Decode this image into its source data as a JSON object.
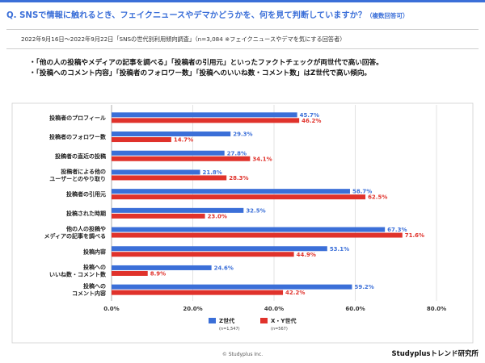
{
  "header": {
    "title": "Q. SNSで情報に触れるとき、フェイクニュースやデマかどうかを、何を見て判断していますか？",
    "title_note": "（複数回答可）",
    "subtitle": "2022年9月16日～2022年9月22日「SNSの世代別利用傾向調査」（n=3,084 ※フェイクニュースやデマを気にする回答者）"
  },
  "bullets": [
    "・「他の人の投稿やメディアの記事を調べる」「投稿者の引用元」といったファクトチェックが両世代で高い回答。",
    "・「投稿へのコメント内容」「投稿者のフォロワー数」「投稿へのいいね数・コメント数」はZ世代で高い傾向。"
  ],
  "chart_data": {
    "type": "bar",
    "orientation": "horizontal",
    "categories": [
      "投稿者のプロフィール",
      "投稿者のフォロワー数",
      "投稿者の直近の投稿",
      "投稿者による他の\nユーザーとのやり取り",
      "投稿者の引用元",
      "投稿された時期",
      "他の人の投稿や\nメディアの記事を調べる",
      "投稿内容",
      "投稿への\nいいね数・コメント数",
      "投稿への\nコメント内容"
    ],
    "series": [
      {
        "name": "Z世代",
        "n_label": "(n=1,547)",
        "color": "#3b6fd8",
        "values": [
          45.7,
          29.3,
          27.8,
          21.8,
          58.7,
          32.5,
          67.3,
          53.1,
          24.6,
          59.2
        ]
      },
      {
        "name": "X・Y世代",
        "n_label": "(n=567)",
        "color": "#e0322b",
        "values": [
          46.2,
          14.7,
          34.1,
          28.3,
          62.5,
          23.0,
          71.6,
          44.9,
          8.9,
          42.2
        ]
      }
    ],
    "xlim": [
      0,
      80
    ],
    "xticks": [
      "0.0%",
      "20.0%",
      "40.0%",
      "60.0%",
      "80.0%"
    ],
    "value_suffix": "%",
    "grid": true,
    "legend_position": "bottom"
  },
  "footer": {
    "copyright": "© Studyplus Inc.",
    "brand": "Studyplusトレンド研究所"
  }
}
